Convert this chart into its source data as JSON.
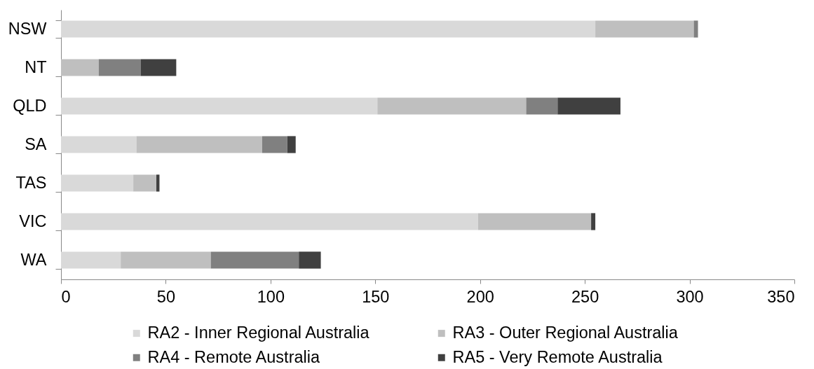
{
  "chart_data": {
    "type": "bar",
    "orientation": "horizontal",
    "stacked": true,
    "categories": [
      "NSW",
      "NT",
      "QLD",
      "SA",
      "TAS",
      "VIC",
      "WA"
    ],
    "series": [
      {
        "name": "RA2 - Inner Regional Australia",
        "color": "#d9d9d9",
        "values": [
          255,
          null,
          151,
          36,
          34.5,
          199,
          28.5
        ]
      },
      {
        "name": "RA3 - Outer Regional Australia",
        "color": "#bfbfbf",
        "values": [
          47,
          18,
          71,
          60,
          11,
          54,
          43
        ]
      },
      {
        "name": "RA4 - Remote Australia",
        "color": "#808080",
        "values": [
          2,
          20,
          15,
          12,
          null,
          null,
          42
        ]
      },
      {
        "name": "RA5 - Very Remote Australia",
        "color": "#404040",
        "values": [
          null,
          17,
          30,
          4,
          1.5,
          2,
          10.5
        ]
      }
    ],
    "xlim": [
      0,
      350
    ],
    "xticks": [
      0,
      50,
      100,
      150,
      200,
      250,
      300,
      350
    ],
    "grid": false,
    "legend": "bottom"
  }
}
